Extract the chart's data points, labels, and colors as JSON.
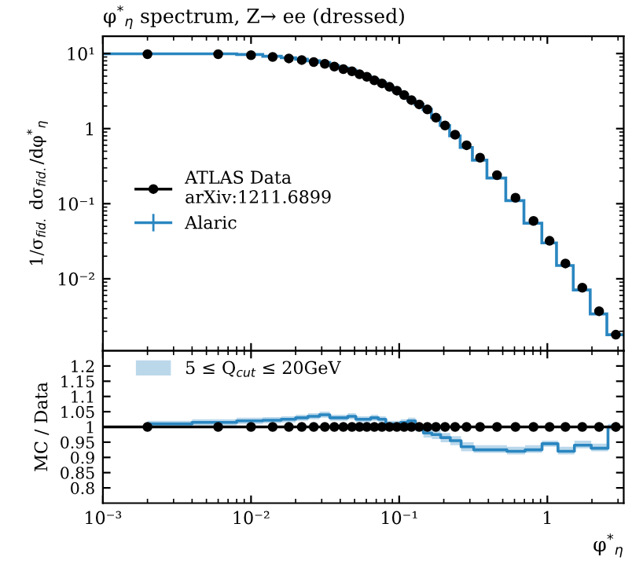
{
  "chart_data": [
    {
      "type": "histogram",
      "title": "φ$^{*}$$_{η}$ spectrum, Z→ ee (dressed)",
      "ylabel": "1/σ$_{fid.}$ dσ$_{fid.}$/dφ$^{*}$$_{η}$",
      "log": "xy",
      "tick_labels": "y",
      "legend": "left",
      "bins": [
        0.001,
        0.004,
        0.008,
        0.012,
        0.016,
        0.02,
        0.024,
        0.029,
        0.034,
        0.039,
        0.045,
        0.051,
        0.057,
        0.064,
        0.072,
        0.081,
        0.091,
        0.102,
        0.114,
        0.128,
        0.145,
        0.165,
        0.189,
        0.219,
        0.258,
        0.312,
        0.391,
        0.524,
        0.695,
        0.918,
        1.153,
        1.496,
        1.947,
        2.522,
        3.277
      ],
      "xlim": [
        0.001,
        3.277
      ],
      "xticks": [
        {
          "value": 0.001,
          "label": null
        },
        {
          "value": 0.01,
          "label": null
        },
        {
          "value": 0.1,
          "label": null
        },
        {
          "value": 1,
          "label": null
        }
      ],
      "ylim": [
        0.0011,
        17
      ],
      "yticks": [
        {
          "value": 10,
          "label": "10¹"
        },
        1,
        {
          "value": 0.1,
          "label": "10⁻¹"
        },
        {
          "value": 0.01,
          "label": "10⁻²"
        }
      ],
      "series": [
        {
          "type": "scatter",
          "name": "ATLAS Data\narXiv:1211.6899",
          "color": "#000000",
          "marker": "circle",
          "x": [
            0.002,
            0.006,
            0.01,
            0.014,
            0.018,
            0.022,
            0.0265,
            0.0315,
            0.0365,
            0.042,
            0.048,
            0.054,
            0.0605,
            0.068,
            0.0765,
            0.086,
            0.0965,
            0.108,
            0.121,
            0.1365,
            0.155,
            0.177,
            0.204,
            0.2385,
            0.285,
            0.3515,
            0.4575,
            0.6095,
            0.8065,
            1.0355,
            1.3245,
            1.7215,
            2.2345,
            2.8995
          ],
          "values": [
            9.8,
            9.8,
            9.5,
            9.0,
            8.6,
            8.2,
            7.7,
            7.3,
            6.7,
            6.2,
            5.8,
            5.3,
            4.9,
            4.4,
            4.0,
            3.6,
            3.2,
            2.8,
            2.4,
            2.1,
            1.8,
            1.4,
            1.1,
            0.83,
            0.6,
            0.41,
            0.24,
            0.12,
            0.059,
            0.032,
            0.016,
            0.0076,
            0.0037,
            0.0018
          ]
        },
        {
          "name": "Alaric",
          "color": "#2a86c0",
          "values": [
            9.9,
            9.9,
            9.7,
            9.2,
            8.8,
            8.4,
            8.0,
            7.6,
            6.9,
            6.4,
            6.0,
            5.4,
            5.0,
            4.5,
            4.1,
            3.6,
            3.2,
            2.8,
            2.4,
            2.1,
            1.8,
            1.4,
            1.1,
            0.8,
            0.56,
            0.38,
            0.22,
            0.11,
            0.055,
            0.03,
            0.015,
            0.0071,
            0.0034,
            0.0018
          ]
        }
      ]
    },
    {
      "type": "step",
      "xlabel": "φ$^{*}$$_{η}$",
      "ylabel": "MC / Data",
      "log": "x",
      "legend": "top left",
      "xlim": [
        0.001,
        3.277
      ],
      "xticks": [
        {
          "value": 0.001,
          "label": "10⁻³"
        },
        {
          "value": 0.01,
          "label": "10⁻²"
        },
        {
          "value": 0.1,
          "label": "10⁻¹"
        },
        1
      ],
      "ylim": [
        0.75,
        1.25
      ],
      "yticks": [
        0.8,
        0.85,
        0.9,
        0.95,
        1,
        1.05,
        1.1,
        1.15,
        1.2
      ],
      "ref_lines": [
        {
          "axis": "y",
          "value": 1,
          "color": "#000000"
        }
      ],
      "series": [
        {
          "name": "5 ≤ Q$_{cut}$ ≤ 20GeV",
          "color": "#2a86c0",
          "x": [
            0.002,
            0.006,
            0.01,
            0.014,
            0.018,
            0.022,
            0.0265,
            0.0315,
            0.0365,
            0.042,
            0.048,
            0.054,
            0.0605,
            0.068,
            0.0765,
            0.086,
            0.0965,
            0.108,
            0.121,
            0.1365,
            0.155,
            0.177,
            0.204,
            0.2385,
            0.285,
            0.3515,
            0.4575,
            0.6095,
            0.8065,
            1.0355,
            1.3245,
            1.7215,
            2.2345,
            2.8995
          ],
          "values": [
            1.01,
            1.015,
            1.02,
            1.022,
            1.025,
            1.03,
            1.035,
            1.04,
            1.03,
            1.03,
            1.035,
            1.025,
            1.025,
            1.03,
            1.025,
            1.01,
            1.01,
            1.015,
            1.02,
            1.0,
            0.98,
            0.975,
            0.965,
            0.955,
            0.935,
            0.925,
            0.925,
            0.92,
            0.925,
            0.945,
            0.92,
            0.94,
            0.93,
            1.0
          ],
          "lower": [
            1.0,
            1.005,
            1.01,
            1.012,
            1.015,
            1.02,
            1.025,
            1.03,
            1.02,
            1.02,
            1.025,
            1.015,
            1.015,
            1.02,
            1.015,
            1.0,
            1.0,
            1.005,
            1.01,
            0.985,
            0.965,
            0.96,
            0.95,
            0.94,
            0.92,
            0.915,
            0.915,
            0.91,
            0.915,
            0.935,
            0.91,
            0.93,
            0.92,
            0.99
          ],
          "upper": [
            1.02,
            1.025,
            1.03,
            1.032,
            1.035,
            1.04,
            1.045,
            1.05,
            1.04,
            1.04,
            1.045,
            1.035,
            1.035,
            1.04,
            1.035,
            1.02,
            1.02,
            1.025,
            1.03,
            1.01,
            0.995,
            0.99,
            0.98,
            0.97,
            0.95,
            0.94,
            0.94,
            0.935,
            0.94,
            0.955,
            0.935,
            0.955,
            0.945,
            1.01
          ]
        },
        {
          "type": "scatter",
          "color": "#000000",
          "marker": "circle",
          "x": [
            0.002,
            0.006,
            0.01,
            0.014,
            0.018,
            0.022,
            0.0265,
            0.0315,
            0.0365,
            0.042,
            0.048,
            0.054,
            0.0605,
            0.068,
            0.0765,
            0.086,
            0.0965,
            0.108,
            0.121,
            0.1365,
            0.155,
            0.177,
            0.204,
            0.2385,
            0.285,
            0.3515,
            0.4575,
            0.6095,
            0.8065,
            1.0355,
            1.3245,
            1.7215,
            2.2345,
            2.8995
          ],
          "values": [
            1,
            1,
            1,
            1,
            1,
            1,
            1,
            1,
            1,
            1,
            1,
            1,
            1,
            1,
            1,
            1,
            1,
            1,
            1,
            1,
            1,
            1,
            1,
            1,
            1,
            1,
            1,
            1,
            1,
            1,
            1,
            1,
            1,
            1
          ],
          "errors": [
            null,
            null,
            null,
            null,
            null,
            null,
            null,
            null,
            null,
            null,
            null,
            null,
            null,
            null,
            null,
            null,
            null,
            null,
            null,
            null,
            null,
            null,
            null,
            null,
            null,
            null,
            null,
            null,
            null,
            0.005,
            0.005,
            0.008,
            0.01,
            0.015
          ]
        }
      ]
    }
  ]
}
